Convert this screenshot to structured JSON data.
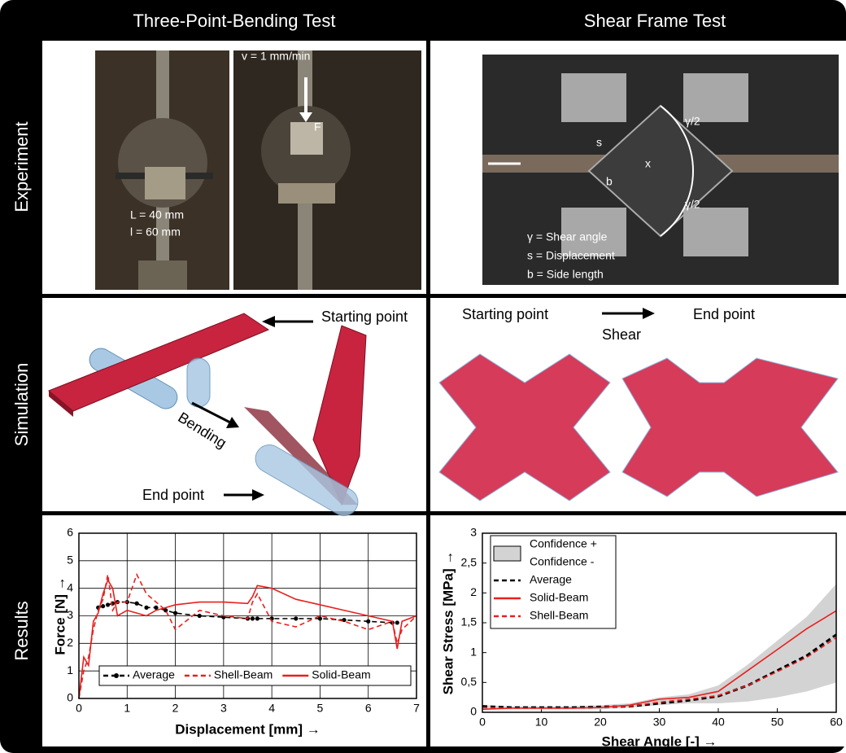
{
  "header": {
    "titles": [
      "Three-Point-Bending Test",
      "Shear Frame Test"
    ]
  },
  "rows": {
    "labels": [
      "Experiment",
      "Simulation",
      "Results"
    ]
  },
  "experiment": {
    "bending": {
      "span_label": "L = 40 mm",
      "length_label": "l = 60 mm",
      "speed_label": "v = 1 mm/min",
      "force_label": "F"
    },
    "shear": {
      "s_label": "s",
      "b_label": "b",
      "x_label": "x",
      "angle_labels": [
        "γ/2",
        "γ/2"
      ],
      "legend": [
        "γ = Shear angle",
        "s = Displacement",
        "b = Side length"
      ]
    }
  },
  "simulation": {
    "bending": {
      "start": "Starting point",
      "action": "Bending",
      "end": "End point"
    },
    "shear": {
      "start": "Starting point",
      "action": "Shear",
      "end": "End point"
    }
  },
  "chart_data": [
    {
      "type": "line",
      "x_label": "Displacement [mm] →",
      "y_label": "Force [N] →",
      "x": [
        0,
        0.1,
        0.2,
        0.3,
        0.4,
        0.5,
        0.6,
        0.7,
        0.8,
        1,
        1.2,
        1.4,
        1.6,
        1.8,
        2,
        2.5,
        3,
        3.5,
        3.6,
        3.7,
        4,
        4.5,
        5,
        5.5,
        6,
        6.5,
        6.6,
        6.7,
        7
      ],
      "series": [
        {
          "name": "Average",
          "color": "#000000",
          "dash": true,
          "markers": true,
          "values": [
            null,
            null,
            null,
            null,
            3.3,
            3.35,
            3.4,
            3.45,
            3.5,
            3.5,
            3.45,
            3.3,
            3.3,
            3.2,
            3.1,
            3.0,
            2.95,
            2.9,
            2.9,
            2.9,
            2.9,
            2.9,
            2.9,
            2.85,
            2.8,
            2.75,
            2.75,
            null,
            null
          ]
        },
        {
          "name": "Shell-Beam",
          "color": "#e8201e",
          "dash": true,
          "markers": false,
          "values": [
            0,
            1,
            1.5,
            2.5,
            3.2,
            3.6,
            4.5,
            3.2,
            3.5,
            3.5,
            4.5,
            3.8,
            3.5,
            3.2,
            2.5,
            3.2,
            3.0,
            2.9,
            3.5,
            3.8,
            2.8,
            2.6,
            3.0,
            2.8,
            2.5,
            2.8,
            2.0,
            2.5,
            3.0
          ]
        },
        {
          "name": "Solid-Beam",
          "color": "#e8201e",
          "dash": false,
          "markers": false,
          "values": [
            0,
            1.5,
            1.2,
            2.8,
            3.1,
            3.8,
            4.3,
            4.0,
            3.0,
            3.2,
            3.1,
            3.0,
            3.2,
            3.3,
            3.4,
            3.5,
            3.5,
            3.45,
            3.7,
            4.1,
            4.0,
            3.6,
            3.4,
            3.2,
            3.0,
            2.8,
            1.8,
            2.8,
            3.0
          ]
        }
      ],
      "xlim": [
        0,
        7
      ],
      "xticks": [
        0,
        1,
        2,
        3,
        4,
        5,
        6,
        7
      ],
      "ylim": [
        0,
        6
      ],
      "yticks": [
        0,
        1,
        2,
        3,
        4,
        5,
        6
      ],
      "grid": true,
      "legend": "lower center"
    },
    {
      "type": "line",
      "x_label": "Shear Angle [-] →",
      "y_label": "Shear Stress [MPa] →",
      "x": [
        0,
        5,
        10,
        15,
        20,
        25,
        30,
        35,
        40,
        45,
        50,
        55,
        60
      ],
      "series": [
        {
          "name": "Confidence +",
          "color": "#d3d3d3",
          "dash": false,
          "markers": false,
          "values": [
            0.12,
            0.1,
            0.1,
            0.1,
            0.12,
            0.15,
            0.25,
            0.3,
            0.45,
            0.8,
            1.2,
            1.6,
            2.15
          ]
        },
        {
          "name": "Confidence -",
          "color": "#d3d3d3",
          "dash": false,
          "markers": false,
          "values": [
            0.05,
            0.05,
            0.05,
            0.05,
            0.05,
            0.08,
            0.12,
            0.15,
            0.15,
            0.18,
            0.25,
            0.35,
            0.5
          ]
        },
        {
          "name": "Average",
          "color": "#000000",
          "dash": true,
          "markers": false,
          "values": [
            0.1,
            0.08,
            0.08,
            0.08,
            0.09,
            0.1,
            0.15,
            0.2,
            0.27,
            0.45,
            0.7,
            0.95,
            1.3
          ]
        },
        {
          "name": "Solid-Beam",
          "color": "#e8201e",
          "dash": false,
          "markers": false,
          "values": [
            0.05,
            0.07,
            0.07,
            0.07,
            0.08,
            0.12,
            0.22,
            0.25,
            0.35,
            0.7,
            1.05,
            1.4,
            1.7
          ]
        },
        {
          "name": "Shell-Beam",
          "color": "#e8201e",
          "dash": true,
          "markers": false,
          "values": [
            0.08,
            0.07,
            0.07,
            0.07,
            0.08,
            0.1,
            0.17,
            0.22,
            0.28,
            0.45,
            0.68,
            0.92,
            1.25
          ]
        }
      ],
      "band": [
        0,
        1
      ],
      "xlim": [
        0,
        60
      ],
      "xticks": [
        0,
        10,
        20,
        30,
        40,
        50,
        60
      ],
      "ylim": [
        0,
        3
      ],
      "yticks": [
        0,
        {
          "value": 0.5,
          "label": "0,5"
        },
        1,
        {
          "value": 1.5,
          "label": "1,5"
        },
        2,
        {
          "value": 2.5,
          "label": "2,5"
        },
        3
      ],
      "grid": false,
      "legend": "upper left"
    }
  ]
}
